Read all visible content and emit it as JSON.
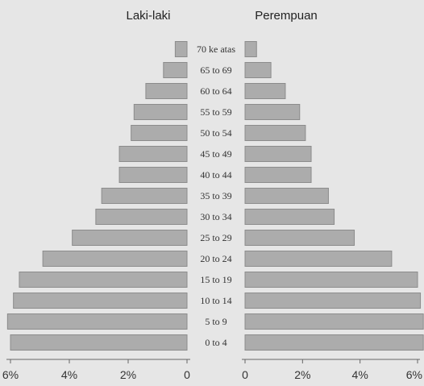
{
  "chart_data": {
    "type": "bar",
    "orientation": "horizontal-population-pyramid",
    "left_title": "Laki-laki",
    "right_title": "Perempuan",
    "categories": [
      "0 to 4",
      "5 to 9",
      "10 to 14",
      "15 to 19",
      "20 to 24",
      "25 to 29",
      "30 to 34",
      "35 to 39",
      "40 to 44",
      "45 to 49",
      "50 to 54",
      "55 to 59",
      "60 to 64",
      "65 to 69",
      "70 ke atas"
    ],
    "series": [
      {
        "name": "Laki-laki",
        "values": [
          6.0,
          6.1,
          5.9,
          5.7,
          4.9,
          3.9,
          3.1,
          2.9,
          2.3,
          2.3,
          1.9,
          1.8,
          1.4,
          0.8,
          0.4
        ]
      },
      {
        "name": "Perempuan",
        "values": [
          6.2,
          6.2,
          6.1,
          6.0,
          5.1,
          3.8,
          3.1,
          2.9,
          2.3,
          2.3,
          2.1,
          1.9,
          1.4,
          0.9,
          0.4
        ]
      }
    ],
    "left_ticks": [
      "6%",
      "4%",
      "2%",
      "0"
    ],
    "right_ticks": [
      "0",
      "2%",
      "4%",
      "6%"
    ],
    "xlim": [
      0,
      6
    ],
    "colors": {
      "bar_fill": "#acacac",
      "bar_stroke": "#8c8c8c",
      "background": "#e6e6e6",
      "axis": "#666666"
    }
  }
}
